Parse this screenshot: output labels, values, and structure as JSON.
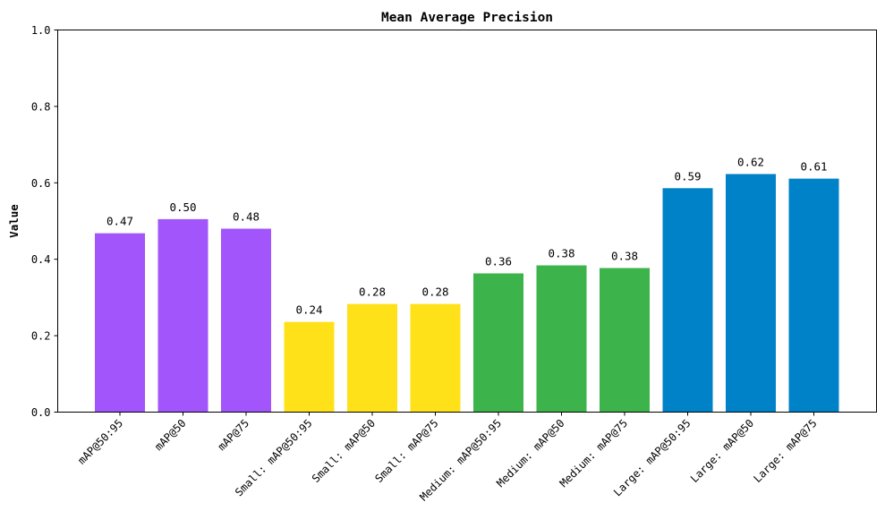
{
  "chart_data": {
    "type": "bar",
    "title": "Mean Average Precision",
    "xlabel": "",
    "ylabel": "Value",
    "ylim": [
      0,
      1.0
    ],
    "yticks": [
      "0.0",
      "0.2",
      "0.4",
      "0.6",
      "0.8",
      "1.0"
    ],
    "grid": false,
    "legend": null,
    "categories": [
      "mAP@50:95",
      "mAP@50",
      "mAP@75",
      "Small: mAP@50:95",
      "Small: mAP@50",
      "Small: mAP@75",
      "Medium: mAP@50:95",
      "Medium: mAP@50",
      "Medium: mAP@75",
      "Large: mAP@50:95",
      "Large: mAP@50",
      "Large: mAP@75"
    ],
    "values": [
      0.468,
      0.505,
      0.48,
      0.236,
      0.283,
      0.283,
      0.363,
      0.384,
      0.377,
      0.586,
      0.623,
      0.611
    ],
    "value_labels": [
      "0.47",
      "0.50",
      "0.48",
      "0.24",
      "0.28",
      "0.28",
      "0.36",
      "0.38",
      "0.38",
      "0.59",
      "0.62",
      "0.61"
    ],
    "colors": [
      "#a155fa",
      "#a155fa",
      "#a155fa",
      "#ffe119",
      "#ffe119",
      "#ffe119",
      "#3cb44b",
      "#3cb44b",
      "#3cb44b",
      "#0082c8",
      "#0082c8",
      "#0082c8"
    ],
    "xtick_rotation": 45
  }
}
